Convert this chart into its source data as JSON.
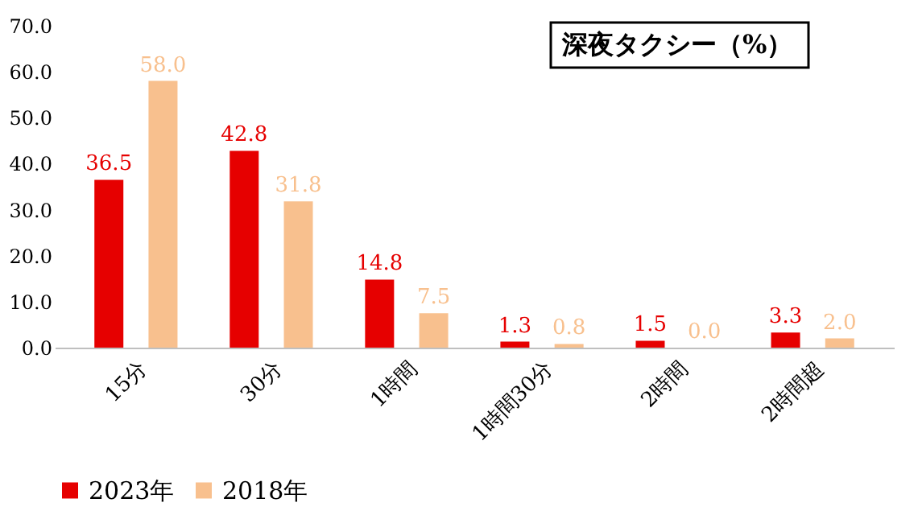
{
  "chart_data": {
    "type": "bar",
    "title": "深夜タクシー（%）",
    "categories": [
      "15分",
      "30分",
      "1時間",
      "1時間30分",
      "2時間",
      "2時間超"
    ],
    "series": [
      {
        "name": "2023年",
        "color": "#e60000",
        "values": [
          36.5,
          42.8,
          14.8,
          1.3,
          1.5,
          3.3
        ],
        "value_labels": [
          "36.5",
          "42.8",
          "14.8",
          "1.3",
          "1.5",
          "3.3"
        ]
      },
      {
        "name": "2018年",
        "color": "#f8c08e",
        "values": [
          58.0,
          31.8,
          7.5,
          0.8,
          0.0,
          2.0
        ],
        "value_labels": [
          "58.0",
          "31.8",
          "7.5",
          "0.8",
          "0.0",
          "2.0"
        ]
      }
    ],
    "ylim": [
      0,
      70
    ],
    "yticks": [
      {
        "value": 0,
        "label": "0.0"
      },
      {
        "value": 10,
        "label": "10.0"
      },
      {
        "value": 20,
        "label": "20.0"
      },
      {
        "value": 30,
        "label": "30.0"
      },
      {
        "value": 40,
        "label": "40.0"
      },
      {
        "value": 50,
        "label": "50.0"
      },
      {
        "value": 60,
        "label": "60.0"
      },
      {
        "value": 70,
        "label": "70.0"
      }
    ],
    "grid": false,
    "legend": "bottom"
  }
}
